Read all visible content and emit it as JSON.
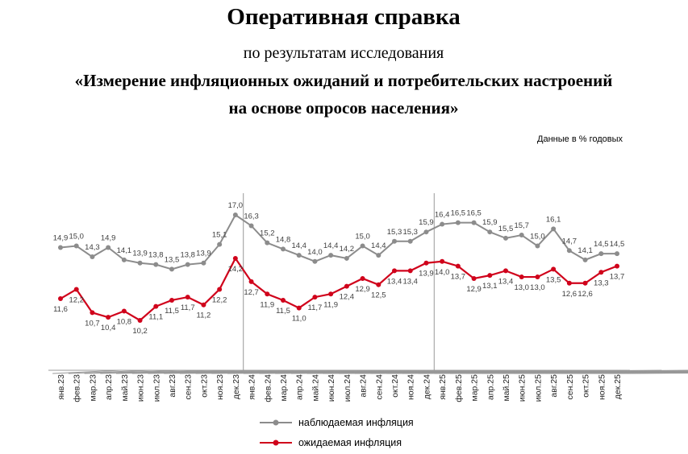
{
  "header": {
    "title": "Оперативная справка",
    "subtitle": "по результатам исследования",
    "heading": [
      "«Измерение инфляционных ожиданий и потребительских настроений",
      "на основе опросов населения»"
    ]
  },
  "chart_data": {
    "type": "line",
    "units_label": "Данные в % годовых",
    "categories": [
      "янв.23",
      "фев.23",
      "мар.23",
      "апр.23",
      "май.23",
      "июн.23",
      "июл.23",
      "авг.23",
      "сен.23",
      "окт.23",
      "ноя.23",
      "дек.23",
      "янв.24",
      "фев.24",
      "мар.24",
      "апр.24",
      "май.24",
      "июн.24",
      "июл.24",
      "авг.24",
      "сен.24",
      "окт.24",
      "ноя.24",
      "дек.24",
      "янв.25",
      "фев.25",
      "мар.25",
      "апр.25",
      "май.25",
      "июн.25",
      "июл.25",
      "авг.25",
      "сен.25",
      "окт.25",
      "ноя.25",
      "дек.25"
    ],
    "series": [
      {
        "name": "наблюдаемая инфляция",
        "color": "#8c8c8c",
        "values": [
          14.9,
          15.0,
          14.3,
          14.9,
          14.1,
          13.9,
          13.8,
          13.5,
          13.8,
          13.9,
          15.1,
          17.0,
          16.3,
          15.2,
          14.8,
          14.4,
          14.0,
          14.4,
          14.2,
          15.0,
          14.4,
          15.3,
          15.3,
          15.9,
          16.4,
          16.5,
          16.5,
          15.9,
          15.5,
          15.7,
          15.0,
          16.1,
          14.7,
          14.1,
          14.5,
          14.5
        ],
        "value_labels": [
          "14,9",
          "15,0",
          "14,3",
          "14,9",
          "14,1",
          "13,9",
          "13,8",
          "13,5",
          "13,8",
          "13,9",
          "15,1",
          "17,0",
          "16,3",
          "15,2",
          "14,8",
          "14,4",
          "14,0",
          "14,4",
          "14,2",
          "15,0",
          "14,4",
          "15,3",
          "15,3",
          "15,9",
          "16,4",
          "16,5",
          "16,5",
          "15,9",
          "15,5",
          "15,7",
          "15,0",
          "16,1",
          "14,7",
          "14,1",
          "14,5",
          "14,5"
        ]
      },
      {
        "name": "ожидаемая инфляция",
        "color": "#d0021b",
        "values": [
          11.6,
          12.2,
          10.7,
          10.4,
          10.8,
          10.2,
          11.1,
          11.5,
          11.7,
          11.2,
          12.2,
          14.2,
          12.7,
          11.9,
          11.5,
          11.0,
          11.7,
          11.9,
          12.4,
          12.9,
          12.5,
          13.4,
          13.4,
          13.9,
          14.0,
          13.7,
          12.9,
          13.1,
          13.4,
          13.0,
          13.0,
          13.5,
          12.6,
          12.6,
          13.3,
          13.7
        ],
        "value_labels": [
          "11,6",
          "12,2",
          "10,7",
          "10,4",
          "10,8",
          "10,2",
          "11,1",
          "11,5",
          "11,7",
          "11,2",
          "12,2",
          "14,2",
          "12,7",
          "11,9",
          "11,5",
          "11,0",
          "11,7",
          "11,9",
          "12,4",
          "12,9",
          "12,5",
          "13,4",
          "13,4",
          "13,9",
          "14,0",
          "13,7",
          "12,9",
          "13,1",
          "13,4",
          "13,0",
          "13,0",
          "13,5",
          "12,6",
          "12,6",
          "13,3",
          "13,7"
        ]
      }
    ]
  }
}
